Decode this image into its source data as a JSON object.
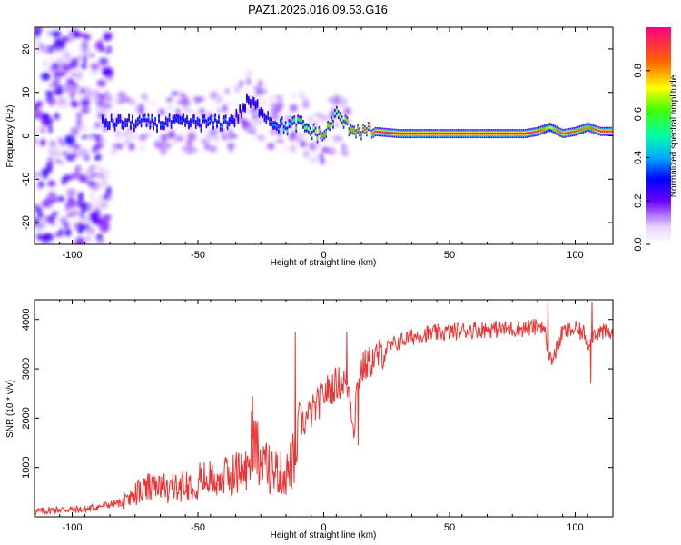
{
  "title": "PAZ1.2026.016.09.53.G16",
  "chart_data": [
    {
      "type": "heatmap",
      "xlabel": "Height of straight line (km)",
      "ylabel": "Frequency (Hz)",
      "xlim": [
        -115,
        115
      ],
      "ylim": [
        -25,
        25
      ],
      "xticks": [
        -100,
        -50,
        0,
        50,
        100
      ],
      "yticks": [
        -20,
        -10,
        0,
        10,
        20
      ],
      "colorbar": {
        "label": "Normalized spectral amplitude",
        "range": [
          0,
          1
        ],
        "ticks": [
          0.0,
          0.2,
          0.4,
          0.6,
          0.8
        ]
      },
      "ridge": {
        "x": [
          -90,
          -80,
          -70,
          -60,
          -50,
          -45,
          -40,
          -35,
          -30,
          -25,
          -20,
          -15,
          -10,
          -5,
          0,
          5,
          10,
          15,
          20,
          30,
          50,
          80,
          85,
          90,
          95,
          100,
          105,
          110
        ],
        "freq": [
          3,
          3,
          3,
          3,
          3,
          3,
          3,
          4,
          8,
          6,
          3,
          2,
          3,
          1,
          0,
          5,
          2,
          1,
          1,
          0.5,
          0.5,
          0.5,
          1,
          2,
          0.5,
          1,
          2,
          1
        ],
        "amplitude": [
          0.3,
          0.35,
          0.4,
          0.35,
          0.35,
          0.4,
          0.4,
          0.3,
          0.25,
          0.3,
          0.4,
          0.5,
          0.6,
          0.7,
          0.85,
          0.7,
          0.8,
          0.9,
          0.95,
          1.0,
          1.0,
          1.0,
          0.9,
          0.7,
          0.95,
          0.9,
          0.8,
          0.95
        ]
      }
    },
    {
      "type": "line",
      "xlabel": "Height of straight line (km)",
      "ylabel": "SNR (10 * v/v)",
      "xlim": [
        -115,
        115
      ],
      "ylim": [
        0,
        4400
      ],
      "xticks": [
        -100,
        -50,
        0,
        50,
        100
      ],
      "yticks": [
        1000,
        2000,
        3000,
        4000
      ],
      "color": "#ee3333",
      "series": [
        {
          "x": [
            -115,
            -105,
            -95,
            -85,
            -78,
            -75,
            -70,
            -60,
            -50,
            -40,
            -35,
            -30,
            -28,
            -25,
            -20,
            -15,
            -12,
            -11,
            -10,
            -8,
            -5,
            -2,
            0,
            3,
            5,
            8,
            10,
            12,
            13,
            15,
            20,
            25,
            30,
            35,
            40,
            50,
            60,
            70,
            80,
            85,
            87,
            88,
            90,
            92,
            95,
            100,
            104,
            105,
            106,
            108,
            110,
            115
          ],
          "y": [
            100,
            150,
            150,
            250,
            300,
            450,
            550,
            550,
            700,
            750,
            850,
            900,
            1800,
            1000,
            900,
            800,
            1100,
            1000,
            2000,
            1900,
            2100,
            2300,
            2500,
            2600,
            2700,
            2750,
            2600,
            1800,
            2500,
            3000,
            3200,
            3400,
            3550,
            3650,
            3700,
            3750,
            3800,
            3800,
            3820,
            3850,
            3900,
            3700,
            3200,
            3300,
            3750,
            3800,
            3700,
            3500,
            3600,
            3750,
            3750,
            3700
          ]
        }
      ],
      "spikes": [
        {
          "x": -11.5,
          "y": 3750
        },
        {
          "x": -28.5,
          "y": 2450
        },
        {
          "x": 9,
          "y": 3750
        },
        {
          "x": 13.5,
          "y": 1450
        },
        {
          "x": 89,
          "y": 4350
        },
        {
          "x": 90.5,
          "y": 3100
        },
        {
          "x": 106,
          "y": 2700
        },
        {
          "x": 106.5,
          "y": 4350
        }
      ]
    }
  ]
}
